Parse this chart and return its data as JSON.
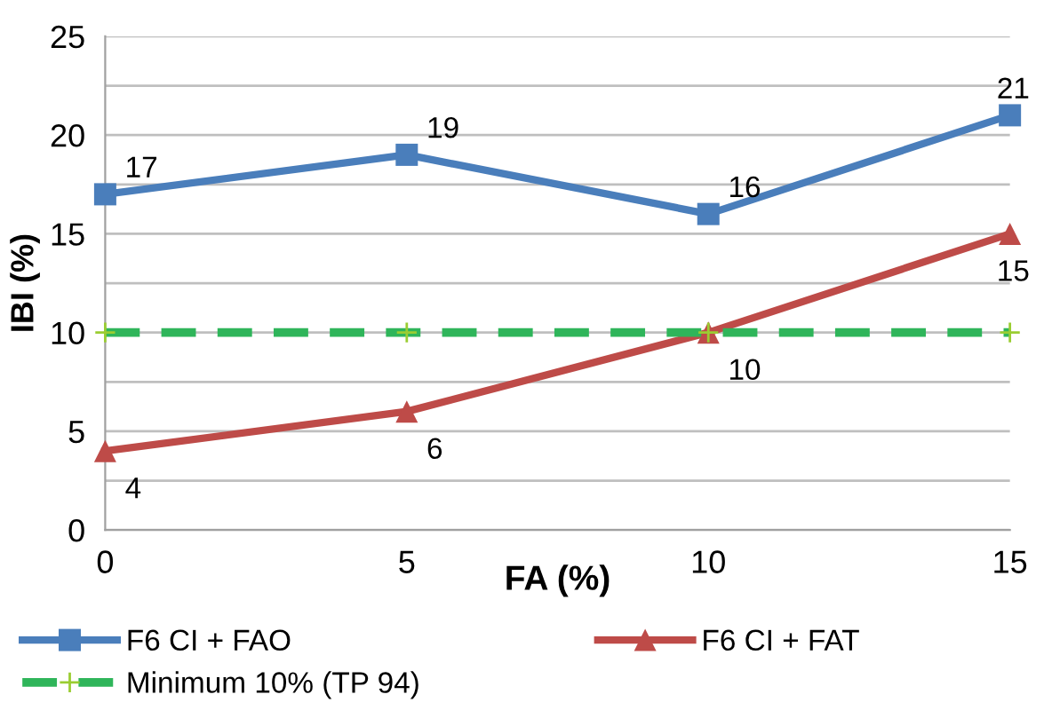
{
  "chart_data": {
    "type": "line",
    "xlabel": "FA (%)",
    "ylabel": "IBI (%)",
    "x": [
      0,
      5,
      10,
      15
    ],
    "series": [
      {
        "name": "F6 CI + FAO",
        "color": "#4a7ebb",
        "values": [
          17,
          19,
          16,
          21
        ],
        "marker": "square",
        "line_style": "solid",
        "value_labels": [
          "17",
          "19",
          "16",
          "21"
        ]
      },
      {
        "name": "F6 CI + FAT",
        "color": "#be4b48",
        "values": [
          4,
          6,
          10,
          15
        ],
        "marker": "triangle",
        "line_style": "solid",
        "value_labels": [
          "4",
          "6",
          "10",
          "15"
        ]
      },
      {
        "name": "Minimum 10% (TP 94)",
        "color": "#2fb55a",
        "values": [
          10,
          10,
          10,
          10
        ],
        "marker": "cross",
        "line_style": "dashed"
      }
    ],
    "xlim": [
      0,
      15
    ],
    "xticks": [
      0,
      5,
      10,
      15
    ],
    "ylim": [
      0,
      25
    ],
    "yticks": [
      0,
      {
        "value": 2.5,
        "label": null
      },
      5,
      {
        "value": 7.5,
        "label": null
      },
      10,
      {
        "value": 12.5,
        "label": null
      },
      15,
      {
        "value": 17.5,
        "label": null
      },
      20,
      {
        "value": 22.5,
        "label": null
      },
      25
    ],
    "grid": "y",
    "legend": "bottom"
  }
}
